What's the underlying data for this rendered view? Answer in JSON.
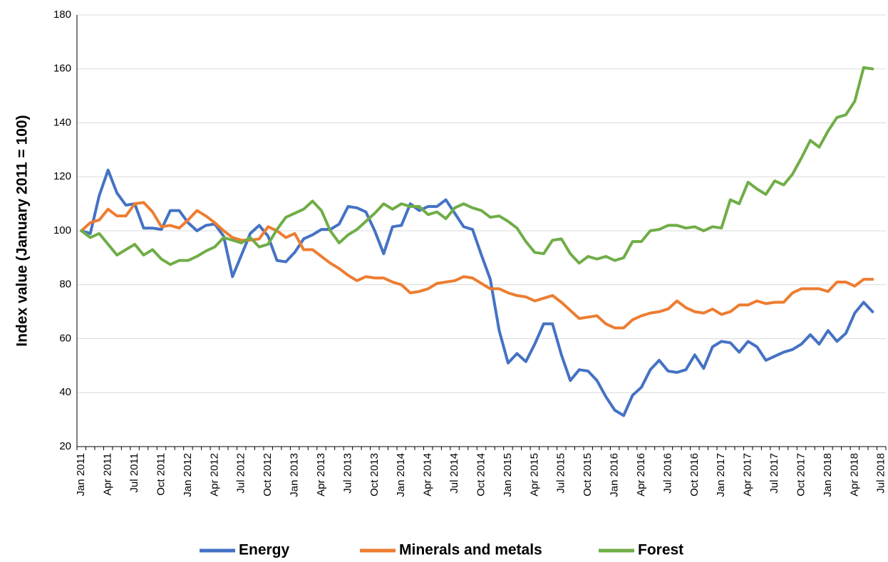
{
  "chart_data": {
    "type": "line",
    "y_label": "Index value (January 2011 = 100)",
    "categories": [
      "Jan 2011",
      null,
      null,
      "Apr 2011",
      null,
      null,
      "Jul 2011",
      null,
      null,
      "Oct 2011",
      null,
      null,
      "Jan 2012",
      null,
      null,
      "Apr 2012",
      null,
      null,
      "Jul 2012",
      null,
      null,
      "Oct 2012",
      null,
      null,
      "Jan 2013",
      null,
      null,
      "Apr 2013",
      null,
      null,
      "Jul 2013",
      null,
      null,
      "Oct 2013",
      null,
      null,
      "Jan 2014",
      null,
      null,
      "Apr 2014",
      null,
      null,
      "Jul 2014",
      null,
      null,
      "Oct 2014",
      null,
      null,
      "Jan 2015",
      null,
      null,
      "Apr 2015",
      null,
      null,
      "Jul 2015",
      null,
      null,
      "Oct 2015",
      null,
      null,
      "Jan 2016",
      null,
      null,
      "Apr 2016",
      null,
      null,
      "Jul 2016",
      null,
      null,
      "Oct 2016",
      null,
      null,
      "Jan 2017",
      null,
      null,
      "Apr 2017",
      null,
      null,
      "Jul 2017",
      null,
      null,
      "Oct 2017",
      null,
      null,
      "Jan 2018",
      null,
      null,
      "Apr 2018",
      null,
      null,
      "Jul 2018"
    ],
    "series": [
      {
        "name": "Energy",
        "color": "#4472c4",
        "values": [
          100,
          99,
          113,
          122.5,
          114,
          109.5,
          110,
          101,
          101,
          100.5,
          107.5,
          107.5,
          103,
          100,
          102,
          102.5,
          98,
          83,
          91,
          99,
          102,
          98,
          89,
          88.5,
          92,
          97,
          98.5,
          100.5,
          100.5,
          102.5,
          109,
          108.5,
          107,
          100,
          91.5,
          101.5,
          102,
          110,
          107.5,
          109,
          109,
          111.5,
          106.5,
          101.5,
          100.5,
          91,
          82,
          63,
          51,
          54.5,
          51.5,
          58,
          65.5,
          65.5,
          54,
          44.5,
          48.5,
          48,
          44.5,
          38.5,
          33.5,
          31.5,
          39,
          42,
          48.5,
          52,
          48,
          47.5,
          48.5,
          54,
          49,
          57,
          59,
          58.5,
          55,
          59,
          57,
          52,
          53.5,
          55,
          56,
          58,
          61.5,
          58,
          63,
          59,
          62,
          69.5,
          73.5,
          70,
          null
        ]
      },
      {
        "name": "Minerals and metals",
        "color": "#ed7d31",
        "values": [
          100,
          103,
          104,
          108,
          105.5,
          105.5,
          110,
          110.5,
          107,
          101.5,
          102,
          101,
          104,
          107.5,
          105.5,
          103,
          100,
          97.5,
          96.5,
          96.5,
          97,
          101.5,
          100,
          97.5,
          99,
          93,
          93,
          90.5,
          88,
          86,
          83.5,
          81.5,
          83,
          82.5,
          82.5,
          81,
          80,
          77,
          77.5,
          78.5,
          80.5,
          81,
          81.5,
          83,
          82.5,
          80.5,
          78.5,
          78.5,
          77,
          76,
          75.5,
          74,
          75,
          76,
          73.5,
          70.5,
          67.5,
          68,
          68.5,
          65.5,
          64,
          64,
          67,
          68.5,
          69.5,
          70,
          71,
          74,
          71.5,
          70,
          69.5,
          71,
          69,
          70,
          72.5,
          72.5,
          74,
          73,
          73.5,
          73.5,
          77,
          78.5,
          78.5,
          78.5,
          77.5,
          81,
          81,
          79.5,
          82,
          82,
          null
        ]
      },
      {
        "name": "Forest",
        "color": "#70ad47",
        "values": [
          100,
          97.5,
          99,
          95,
          91,
          93,
          95,
          91,
          93,
          89.5,
          87.5,
          89,
          89,
          90.5,
          92.5,
          94,
          97.5,
          96.5,
          95.5,
          97.5,
          94,
          95,
          100.5,
          105,
          106.5,
          108,
          111,
          107.5,
          100,
          95.5,
          98.5,
          100.5,
          103.5,
          106.5,
          110,
          108,
          110,
          109,
          109,
          106,
          107,
          104.5,
          108.5,
          110,
          108.5,
          107.5,
          105,
          105.5,
          103.5,
          101,
          96,
          92,
          91.5,
          96.5,
          97,
          91.5,
          88,
          90.5,
          89.5,
          90.5,
          89,
          90,
          96,
          96,
          100,
          100.5,
          102,
          102,
          101,
          101.5,
          100,
          101.5,
          101,
          111.5,
          110,
          118,
          115.5,
          113.5,
          118.5,
          117,
          121,
          127,
          133.5,
          131,
          137,
          142,
          143,
          148,
          160.5,
          160,
          null
        ]
      }
    ],
    "ylim": [
      20,
      180
    ],
    "yticks": [
      20,
      40,
      60,
      80,
      100,
      120,
      140,
      160,
      180
    ],
    "grid": true,
    "legend": "bottom"
  }
}
